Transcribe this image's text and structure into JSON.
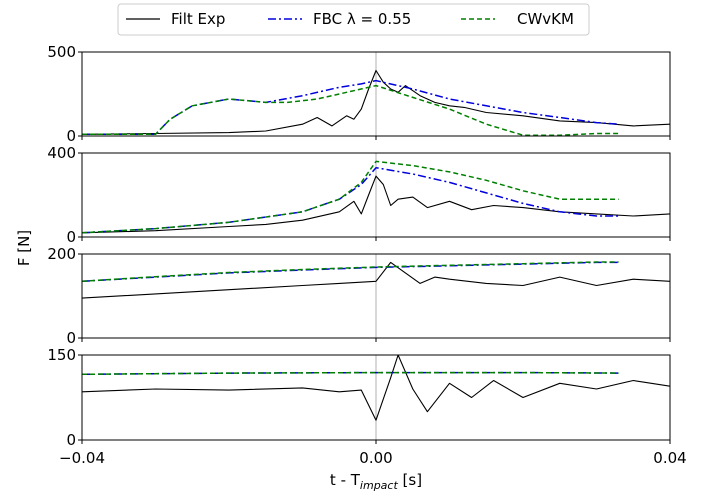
{
  "chart_data": {
    "type": "line",
    "shared_x_range": [
      -0.04,
      0.04
    ],
    "x_ticks": [
      -0.04,
      0.0,
      0.04
    ],
    "x_tick_labels": [
      "−0.04",
      "0.00",
      "0.04"
    ],
    "xlabel_main": "t  - T",
    "xlabel_sub": "impact",
    "xlabel_unit": " [s]",
    "ylabel": "F [N]",
    "vertical_reference_x": 0.0,
    "legend": {
      "placement": "top-center",
      "entries": [
        {
          "label": "Filt Exp",
          "color": "#000000",
          "style": "solid"
        },
        {
          "label": "FBC λ = 0.55",
          "color": "#0000dd",
          "style": "dashdot"
        },
        {
          "label": "CWvKM",
          "color": "#008000",
          "style": "dashed"
        }
      ]
    },
    "panels": [
      {
        "ylim": [
          0,
          500
        ],
        "y_ticks": [
          0,
          500
        ],
        "series": [
          {
            "name": "Filt Exp",
            "x": [
              -0.04,
              -0.03,
              -0.02,
              -0.015,
              -0.01,
              -0.008,
              -0.006,
              -0.004,
              -0.003,
              -0.002,
              -0.001,
              0.0,
              0.001,
              0.002,
              0.003,
              0.004,
              0.006,
              0.008,
              0.01,
              0.012,
              0.015,
              0.02,
              0.025,
              0.03,
              0.035,
              0.04
            ],
            "y": [
              10,
              15,
              20,
              30,
              70,
              110,
              60,
              120,
              100,
              160,
              280,
              390,
              320,
              280,
              260,
              300,
              240,
              200,
              180,
              170,
              140,
              120,
              90,
              80,
              60,
              70
            ]
          },
          {
            "name": "FBC λ = 0.55",
            "x": [
              -0.04,
              -0.03,
              -0.028,
              -0.025,
              -0.02,
              -0.015,
              -0.01,
              -0.005,
              -0.002,
              0.0,
              0.005,
              0.01,
              0.015,
              0.02,
              0.025,
              0.03,
              0.033
            ],
            "y": [
              10,
              10,
              100,
              180,
              220,
              200,
              240,
              290,
              310,
              330,
              280,
              220,
              180,
              140,
              110,
              80,
              70
            ]
          },
          {
            "name": "CWvKM",
            "x": [
              -0.04,
              -0.03,
              -0.028,
              -0.025,
              -0.02,
              -0.015,
              -0.012,
              -0.008,
              -0.005,
              0.0,
              0.005,
              0.01,
              0.015,
              0.02,
              0.025,
              0.03,
              0.033
            ],
            "y": [
              10,
              10,
              100,
              180,
              220,
              200,
              200,
              220,
              250,
              300,
              230,
              160,
              70,
              5,
              5,
              15,
              15
            ]
          }
        ]
      },
      {
        "ylim": [
          0,
          400
        ],
        "y_ticks": [
          0,
          400
        ],
        "series": [
          {
            "name": "Filt Exp",
            "x": [
              -0.04,
              -0.03,
              -0.02,
              -0.015,
              -0.01,
              -0.005,
              -0.003,
              -0.002,
              -0.001,
              0.0,
              0.001,
              0.002,
              0.003,
              0.005,
              0.007,
              0.01,
              0.013,
              0.016,
              0.02,
              0.025,
              0.03,
              0.035,
              0.04
            ],
            "y": [
              20,
              30,
              50,
              60,
              80,
              120,
              170,
              110,
              200,
              290,
              250,
              150,
              180,
              190,
              140,
              170,
              130,
              150,
              140,
              120,
              110,
              100,
              110
            ]
          },
          {
            "name": "FBC λ = 0.55",
            "x": [
              -0.04,
              -0.03,
              -0.02,
              -0.01,
              -0.005,
              -0.002,
              0.0,
              0.005,
              0.01,
              0.015,
              0.02,
              0.025,
              0.03,
              0.033
            ],
            "y": [
              20,
              40,
              70,
              120,
              180,
              250,
              330,
              300,
              260,
              210,
              160,
              120,
              100,
              100
            ]
          },
          {
            "name": "CWvKM",
            "x": [
              -0.04,
              -0.03,
              -0.02,
              -0.01,
              -0.005,
              -0.002,
              0.0,
              0.005,
              0.01,
              0.015,
              0.02,
              0.025,
              0.03,
              0.033
            ],
            "y": [
              20,
              40,
              70,
              120,
              180,
              260,
              360,
              340,
              310,
              270,
              220,
              180,
              180,
              180
            ]
          }
        ]
      },
      {
        "ylim": [
          0,
          200
        ],
        "y_ticks": [
          0,
          200
        ],
        "series": [
          {
            "name": "Filt Exp",
            "x": [
              -0.04,
              -0.03,
              -0.02,
              -0.01,
              -0.005,
              0.0,
              0.002,
              0.004,
              0.006,
              0.008,
              0.01,
              0.015,
              0.02,
              0.025,
              0.03,
              0.035,
              0.04
            ],
            "y": [
              95,
              105,
              115,
              125,
              130,
              135,
              180,
              155,
              130,
              145,
              140,
              130,
              125,
              145,
              125,
              140,
              135
            ]
          },
          {
            "name": "FBC λ = 0.55",
            "x": [
              -0.04,
              -0.03,
              -0.02,
              -0.01,
              0.0,
              0.01,
              0.02,
              0.03,
              0.033
            ],
            "y": [
              135,
              145,
              155,
              162,
              168,
              172,
              176,
              180,
              180
            ]
          },
          {
            "name": "CWvKM",
            "x": [
              -0.04,
              -0.03,
              -0.02,
              -0.01,
              0.0,
              0.01,
              0.02,
              0.03,
              0.033
            ],
            "y": [
              135,
              146,
              156,
              163,
              169,
              173,
              177,
              181,
              181
            ]
          }
        ]
      },
      {
        "ylim": [
          0,
          150
        ],
        "y_ticks": [
          0,
          150
        ],
        "series": [
          {
            "name": "Filt Exp",
            "x": [
              -0.04,
              -0.03,
              -0.02,
              -0.01,
              -0.005,
              -0.002,
              0.0,
              0.002,
              0.003,
              0.005,
              0.007,
              0.01,
              0.013,
              0.016,
              0.02,
              0.025,
              0.03,
              0.035,
              0.04
            ],
            "y": [
              85,
              90,
              88,
              92,
              85,
              88,
              35,
              110,
              150,
              90,
              50,
              100,
              75,
              105,
              75,
              100,
              90,
              105,
              95
            ]
          },
          {
            "name": "FBC λ = 0.55",
            "x": [
              -0.04,
              -0.02,
              0.0,
              0.02,
              0.033
            ],
            "y": [
              116,
              118,
              119,
              119,
              118
            ]
          },
          {
            "name": "CWvKM",
            "x": [
              -0.04,
              -0.02,
              0.0,
              0.02,
              0.033
            ],
            "y": [
              116,
              118,
              119,
              119,
              118
            ]
          }
        ]
      }
    ]
  }
}
